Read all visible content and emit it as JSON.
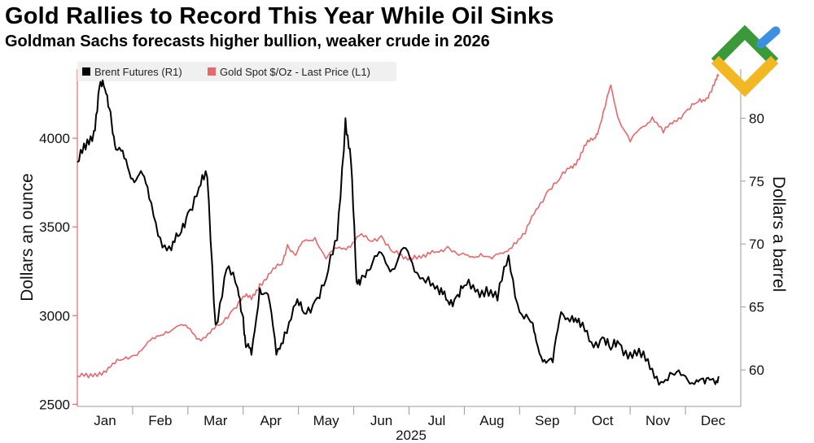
{
  "header": {
    "title": "Gold Rallies to Record This Year While Oil Sinks",
    "subtitle": "Goldman Sachs forecasts higher bullion, weaker crude in 2026"
  },
  "colors": {
    "gold_series": "#e8676a",
    "brent_series": "#000000",
    "left_axis": "#e8676a",
    "logo_green": "#3a9a3a",
    "logo_yellow": "#f2b824",
    "logo_blue": "#3d8fe0"
  },
  "logo": {
    "icon": "arrows-logo-icon"
  },
  "chart_data": {
    "type": "line",
    "xlabel": "2025",
    "x_range": [
      0,
      12
    ],
    "months": [
      "Jan",
      "Feb",
      "Mar",
      "Apr",
      "May",
      "Jun",
      "Jul",
      "Aug",
      "Sep",
      "Oct",
      "Nov",
      "Dec"
    ],
    "left_axis": {
      "label": "Dollars an ounce",
      "ticks": [
        2500,
        3000,
        3500,
        4000
      ],
      "range": [
        2488,
        4390
      ]
    },
    "right_axis": {
      "label": "Dollars a barrel",
      "ticks": [
        60,
        65,
        70,
        75,
        80
      ],
      "range": [
        57.1,
        83.9
      ]
    },
    "legend": [
      "Brent Futures (R1)",
      "Gold Spot $/Oz - Last Price (L1)"
    ],
    "series": [
      {
        "name": "Gold Spot $/Oz - Last Price (L1)",
        "axis": "left",
        "x": [
          0.0,
          0.2,
          0.4,
          0.6,
          0.8,
          1.0,
          1.2,
          1.4,
          1.6,
          1.8,
          2.0,
          2.2,
          2.4,
          2.6,
          2.8,
          3.0,
          3.15,
          3.3,
          3.5,
          3.7,
          3.8,
          3.95,
          4.1,
          4.3,
          4.5,
          4.7,
          4.9,
          5.1,
          5.3,
          5.5,
          5.7,
          5.9,
          6.1,
          6.3,
          6.5,
          6.7,
          6.9,
          7.1,
          7.3,
          7.5,
          7.7,
          7.9,
          8.1,
          8.3,
          8.5,
          8.7,
          8.9,
          9.05,
          9.2,
          9.35,
          9.45,
          9.55,
          9.65,
          9.8,
          10.0,
          10.2,
          10.4,
          10.6,
          10.8,
          11.0,
          11.2,
          11.35,
          11.5,
          11.6
        ],
        "values": [
          2660,
          2650,
          2680,
          2710,
          2750,
          2775,
          2820,
          2870,
          2910,
          2940,
          2930,
          2870,
          2900,
          2950,
          3030,
          3110,
          3090,
          3180,
          3240,
          3290,
          3400,
          3340,
          3420,
          3440,
          3320,
          3380,
          3390,
          3450,
          3420,
          3450,
          3360,
          3320,
          3340,
          3330,
          3360,
          3390,
          3340,
          3330,
          3350,
          3320,
          3350,
          3410,
          3460,
          3600,
          3700,
          3760,
          3830,
          3880,
          3960,
          4000,
          4070,
          4180,
          4300,
          4100,
          3980,
          4060,
          4120,
          4030,
          4100,
          4150,
          4200,
          4210,
          4300,
          4350
        ]
      },
      {
        "name": "Brent Futures (R1)",
        "axis": "right",
        "x": [
          0.0,
          0.15,
          0.3,
          0.4,
          0.5,
          0.6,
          0.7,
          0.85,
          1.0,
          1.15,
          1.3,
          1.5,
          1.7,
          1.85,
          2.0,
          2.2,
          2.35,
          2.5,
          2.7,
          2.9,
          3.0,
          3.05,
          3.15,
          3.3,
          3.45,
          3.6,
          3.75,
          3.95,
          4.1,
          4.3,
          4.5,
          4.7,
          4.85,
          4.95,
          5.05,
          5.15,
          5.3,
          5.5,
          5.7,
          5.9,
          6.1,
          6.35,
          6.55,
          6.7,
          6.85,
          7.0,
          7.2,
          7.4,
          7.6,
          7.8,
          8.0,
          8.2,
          8.3,
          8.45,
          8.6,
          8.75,
          8.95,
          9.1,
          9.3,
          9.5,
          9.65,
          9.8,
          10.0,
          10.2,
          10.4,
          10.6,
          10.8,
          11.0,
          11.2,
          11.35,
          11.5,
          11.6
        ],
        "values": [
          76.5,
          77.5,
          79.0,
          82.5,
          82.3,
          80.5,
          77.5,
          76.8,
          75.2,
          75.8,
          73.6,
          70.5,
          69.5,
          70.7,
          72.5,
          74.5,
          75.3,
          63.6,
          68.0,
          66.5,
          64.2,
          61.8,
          61.2,
          66.5,
          66.0,
          61.2,
          63.0,
          65.2,
          64.5,
          65.5,
          67.2,
          70.3,
          80.0,
          76.5,
          67.0,
          67.5,
          68.0,
          69.3,
          68.0,
          69.7,
          67.8,
          67.4,
          66.0,
          65.5,
          65.8,
          66.7,
          66.2,
          66.6,
          65.5,
          69.1,
          64.6,
          63.8,
          62.3,
          60.8,
          60.6,
          64.6,
          64.3,
          63.4,
          62.2,
          62.6,
          61.6,
          62.1,
          61.4,
          61.0,
          60.1,
          59.0,
          59.6,
          59.5,
          59.2,
          58.9,
          59.3,
          59.5
        ]
      }
    ]
  }
}
